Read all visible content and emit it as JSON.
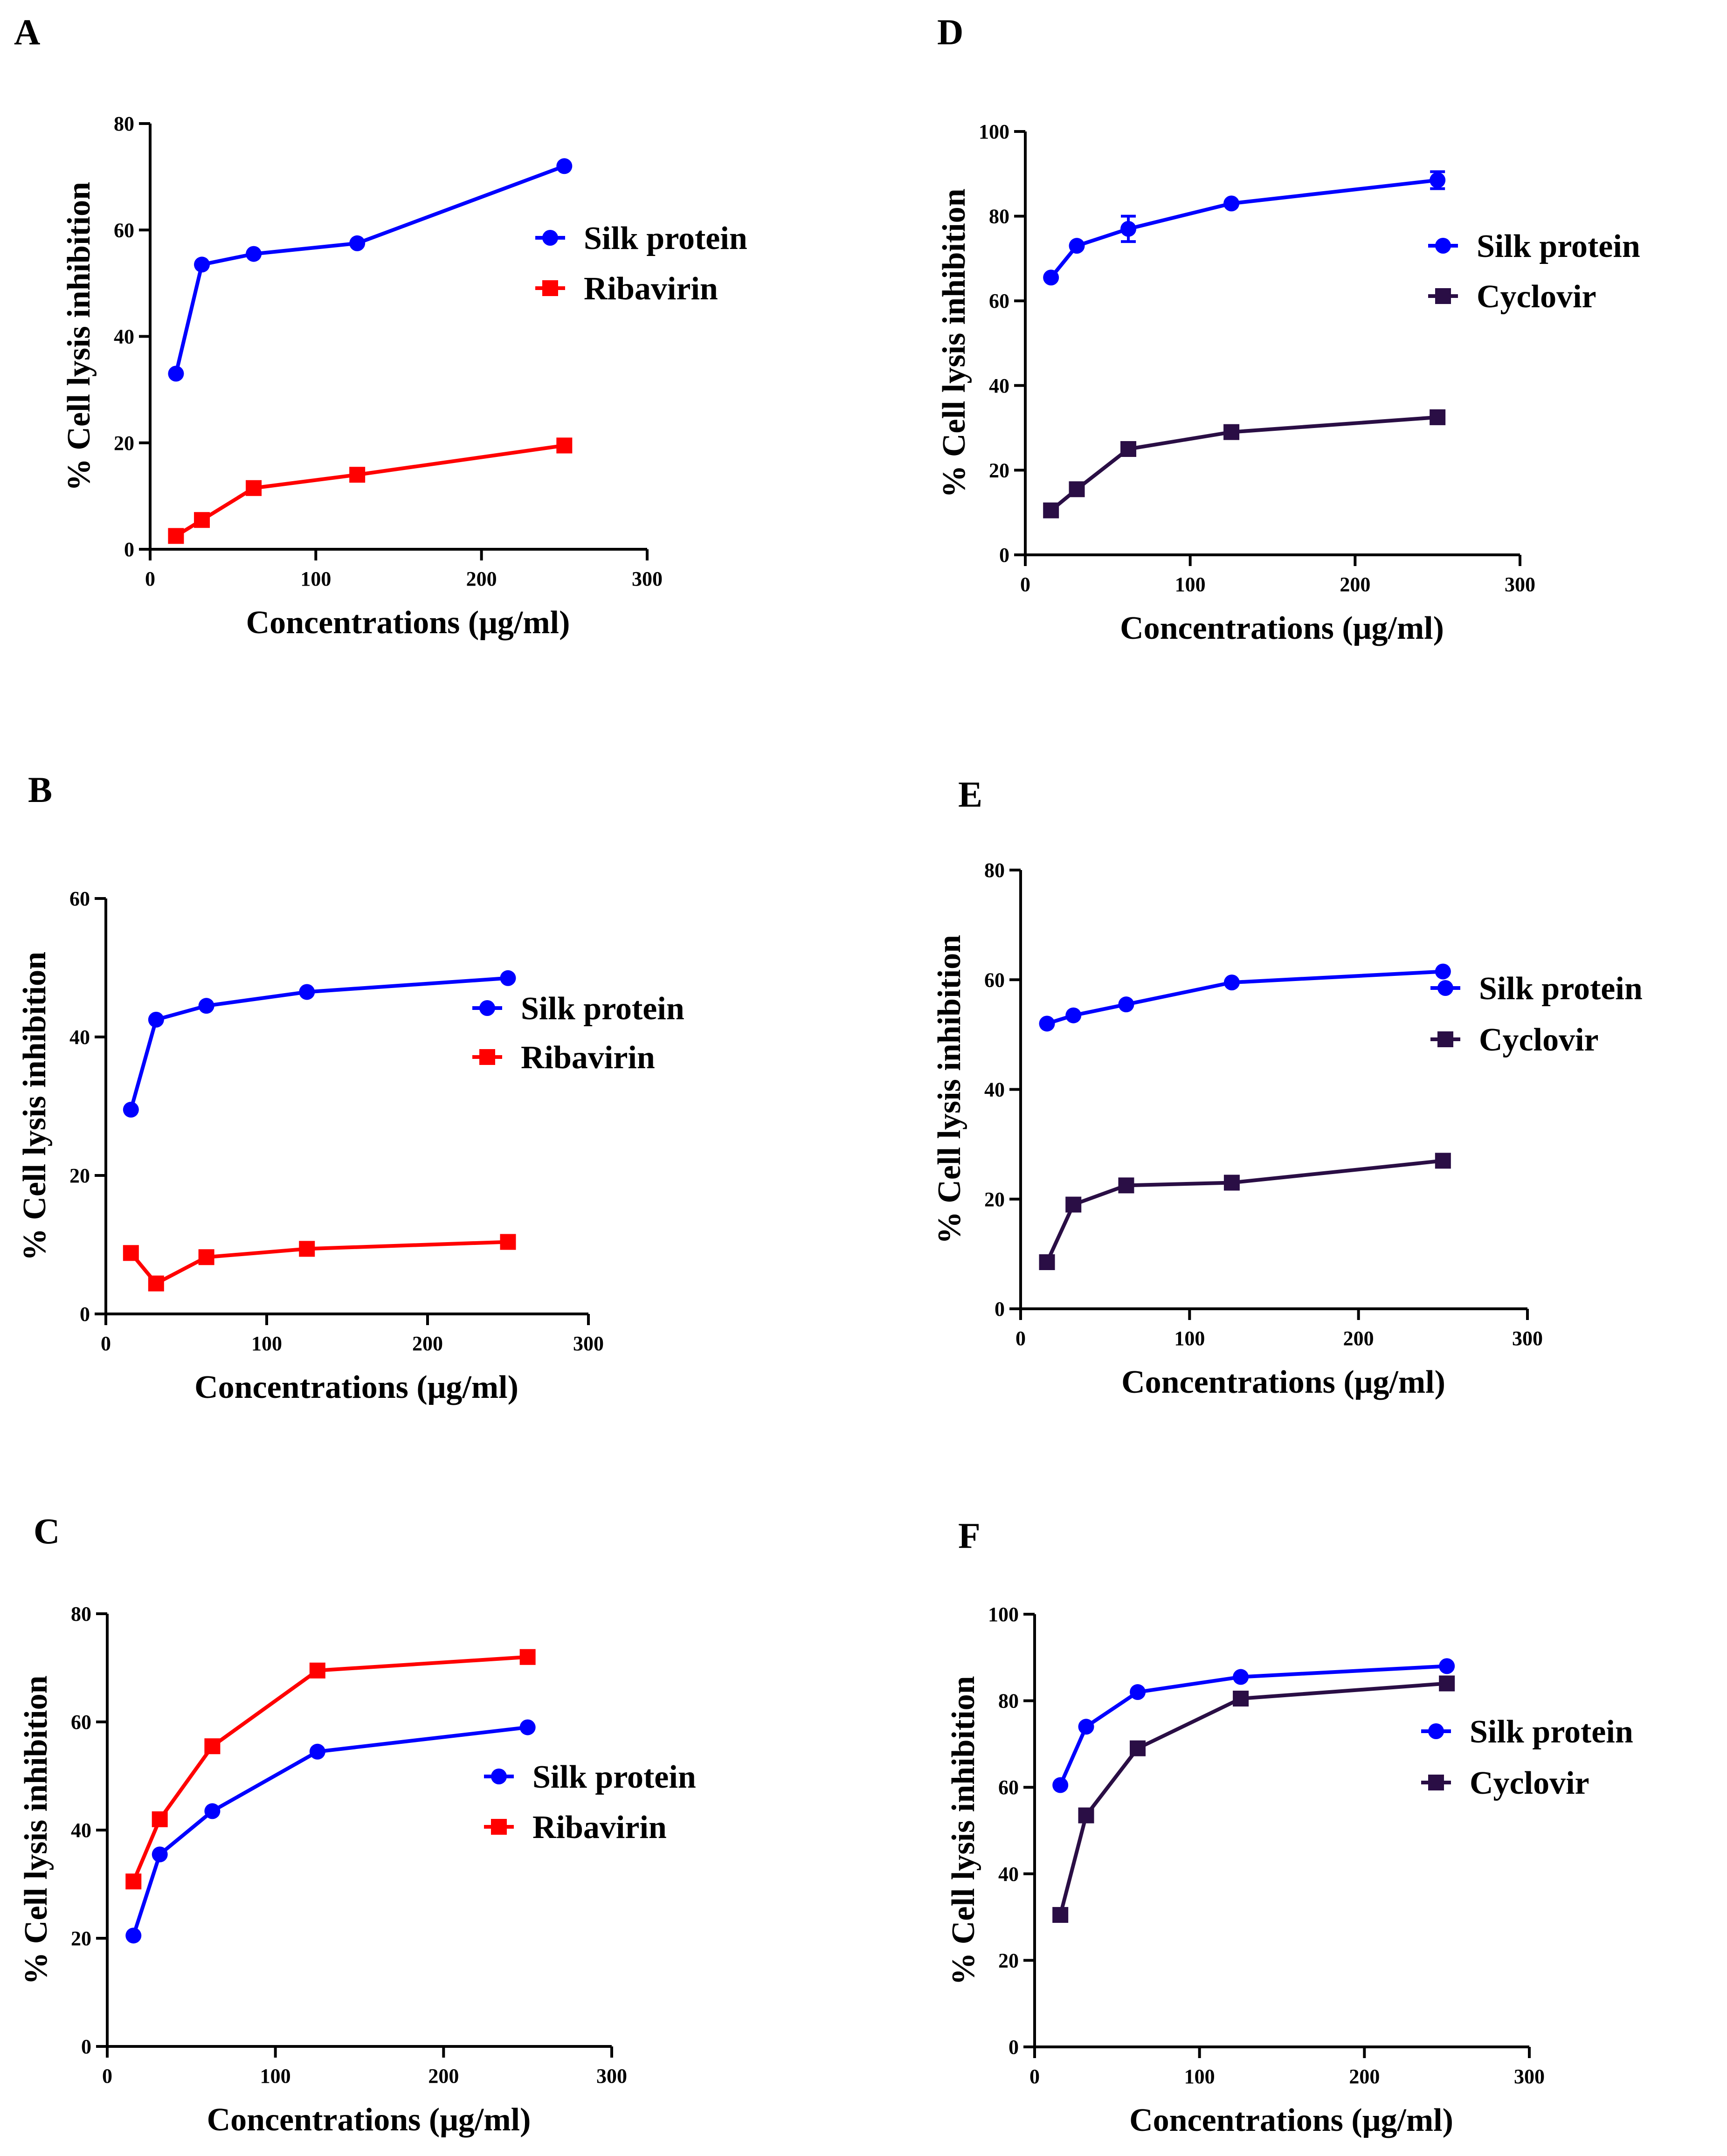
{
  "chart_data": [
    {
      "id": "A",
      "panel_label": "A",
      "type": "line",
      "xlabel": "Concentrations  (μg/ml)",
      "ylabel": "% Cell lysis inhibition",
      "xlim": [
        0,
        300
      ],
      "ylim": [
        0,
        80
      ],
      "xticks": [
        0,
        100,
        200,
        300
      ],
      "yticks": [
        0,
        20,
        40,
        60,
        80
      ],
      "legend_position": "right",
      "series": [
        {
          "name": "Silk protein",
          "marker": "circle",
          "color": "#0000FF",
          "x": [
            15.6,
            31.25,
            62.5,
            125,
            250
          ],
          "y": [
            33,
            53.5,
            55.5,
            57.5,
            72
          ]
        },
        {
          "name": "Ribavirin",
          "marker": "square",
          "color": "#FF0000",
          "x": [
            15.6,
            31.25,
            62.5,
            125,
            250
          ],
          "y": [
            2.5,
            5.5,
            11.5,
            14,
            19.5
          ]
        }
      ]
    },
    {
      "id": "B",
      "panel_label": "B",
      "type": "line",
      "xlabel": "Concentrations  (μg/ml)",
      "ylabel": "% Cell lysis inhibition",
      "xlim": [
        0,
        300
      ],
      "ylim": [
        0,
        60
      ],
      "xticks": [
        0,
        100,
        200,
        300
      ],
      "yticks": [
        0,
        20,
        40,
        60
      ],
      "legend_position": "right",
      "series": [
        {
          "name": "Silk protein",
          "marker": "circle",
          "color": "#0000FF",
          "x": [
            15.6,
            31.25,
            62.5,
            125,
            250
          ],
          "y": [
            29.5,
            42.5,
            44.5,
            46.5,
            48.5
          ]
        },
        {
          "name": "Ribavirin",
          "marker": "square",
          "color": "#FF0000",
          "x": [
            15.6,
            31.25,
            62.5,
            125,
            250
          ],
          "y": [
            8.8,
            4.4,
            8.2,
            9.4,
            10.4
          ]
        }
      ]
    },
    {
      "id": "C",
      "panel_label": "C",
      "type": "line",
      "xlabel": "Concentrations  (μg/ml)",
      "ylabel": "% Cell lysis inhibition",
      "xlim": [
        0,
        300
      ],
      "ylim": [
        0,
        80
      ],
      "xticks": [
        0,
        100,
        200,
        300
      ],
      "yticks": [
        0,
        20,
        40,
        60,
        80
      ],
      "legend_position": "right",
      "series": [
        {
          "name": "Silk protein",
          "marker": "circle",
          "color": "#0000FF",
          "x": [
            15.6,
            31.25,
            62.5,
            125,
            250
          ],
          "y": [
            20.5,
            35.5,
            43.5,
            54.5,
            59
          ]
        },
        {
          "name": "Ribavirin",
          "marker": "square",
          "color": "#FF0000",
          "x": [
            15.6,
            31.25,
            62.5,
            125,
            250
          ],
          "y": [
            30.5,
            42,
            55.5,
            69.5,
            72
          ]
        }
      ]
    },
    {
      "id": "D",
      "panel_label": "D",
      "type": "line",
      "xlabel": "Concentrations  (μg/ml)",
      "ylabel": "% Cell lysis inhibition",
      "xlim": [
        0,
        300
      ],
      "ylim": [
        0,
        100
      ],
      "xticks": [
        0,
        100,
        200,
        300
      ],
      "yticks": [
        0,
        20,
        40,
        60,
        80,
        100
      ],
      "legend_position": "right",
      "series": [
        {
          "name": "Silk protein",
          "marker": "circle",
          "color": "#0000FF",
          "x": [
            15.6,
            31.25,
            62.5,
            125,
            250
          ],
          "y": [
            65.5,
            73,
            77,
            83,
            88.5
          ],
          "error": [
            0,
            0,
            3,
            0,
            2
          ]
        },
        {
          "name": "Cyclovir",
          "marker": "square",
          "color": "#2A0E45",
          "x": [
            15.6,
            31.25,
            62.5,
            125,
            250
          ],
          "y": [
            10.5,
            15.5,
            25,
            29,
            32.5
          ]
        }
      ]
    },
    {
      "id": "E",
      "panel_label": "E",
      "type": "line",
      "xlabel": "Concentrations  (μg/ml)",
      "ylabel": "% Cell lysis inhibition",
      "xlim": [
        0,
        300
      ],
      "ylim": [
        0,
        80
      ],
      "xticks": [
        0,
        100,
        200,
        300
      ],
      "yticks": [
        0,
        20,
        40,
        60,
        80
      ],
      "legend_position": "right",
      "series": [
        {
          "name": "Silk protein",
          "marker": "circle",
          "color": "#0000FF",
          "x": [
            15.6,
            31.25,
            62.5,
            125,
            250
          ],
          "y": [
            52,
            53.5,
            55.5,
            59.5,
            61.5
          ]
        },
        {
          "name": "Cyclovir",
          "marker": "square",
          "color": "#2A0E45",
          "x": [
            15.6,
            31.25,
            62.5,
            125,
            250
          ],
          "y": [
            8.5,
            19,
            22.5,
            23,
            27
          ]
        }
      ]
    },
    {
      "id": "F",
      "panel_label": "F",
      "type": "line",
      "xlabel": "Concentrations  (μg/ml)",
      "ylabel": "% Cell lysis inhibition",
      "xlim": [
        0,
        300
      ],
      "ylim": [
        0,
        100
      ],
      "xticks": [
        0,
        100,
        200,
        300
      ],
      "yticks": [
        0,
        20,
        40,
        60,
        80,
        100
      ],
      "legend_position": "right",
      "series": [
        {
          "name": "Silk protein",
          "marker": "circle",
          "color": "#0000FF",
          "x": [
            15.6,
            31.25,
            62.5,
            125,
            250
          ],
          "y": [
            60.5,
            74,
            82,
            85.5,
            88
          ]
        },
        {
          "name": "Cyclovir",
          "marker": "square",
          "color": "#2A0E45",
          "x": [
            15.6,
            31.25,
            62.5,
            125,
            250
          ],
          "y": [
            30.5,
            53.5,
            69,
            80.5,
            84
          ]
        }
      ]
    }
  ]
}
